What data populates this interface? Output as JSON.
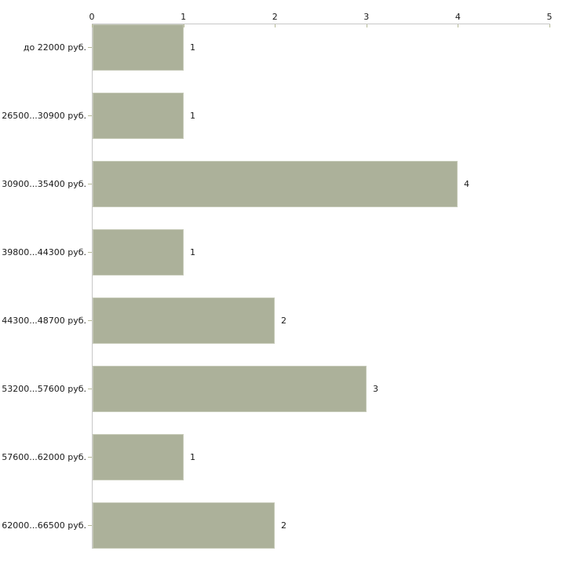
{
  "chart_data": {
    "type": "bar",
    "orientation": "horizontal",
    "title": "",
    "xlabel": "",
    "ylabel": "",
    "categories": [
      "до 22000 руб.",
      "26500...30900 руб.",
      "30900...35400 руб.",
      "39800...44300 руб.",
      "44300...48700 руб.",
      "53200...57600 руб.",
      "57600...62000 руб.",
      "62000...66500 руб."
    ],
    "values": [
      1,
      1,
      4,
      1,
      2,
      3,
      1,
      2
    ],
    "value_labels": [
      "1",
      "1",
      "4",
      "1",
      "2",
      "3",
      "1",
      "2"
    ],
    "xlim": [
      0,
      5
    ],
    "x_ticks": [
      0,
      1,
      2,
      3,
      4,
      5
    ],
    "axis_position": "top",
    "grid": false,
    "legend": "none",
    "colors": {
      "background": "#FFFFFF",
      "bar_fill": "#ACB19A",
      "bar_border": "#C6CAB8",
      "axis_line": "#C8C8C8",
      "tick_mark": "#B6BA97",
      "text": "#1A1A1A"
    }
  }
}
